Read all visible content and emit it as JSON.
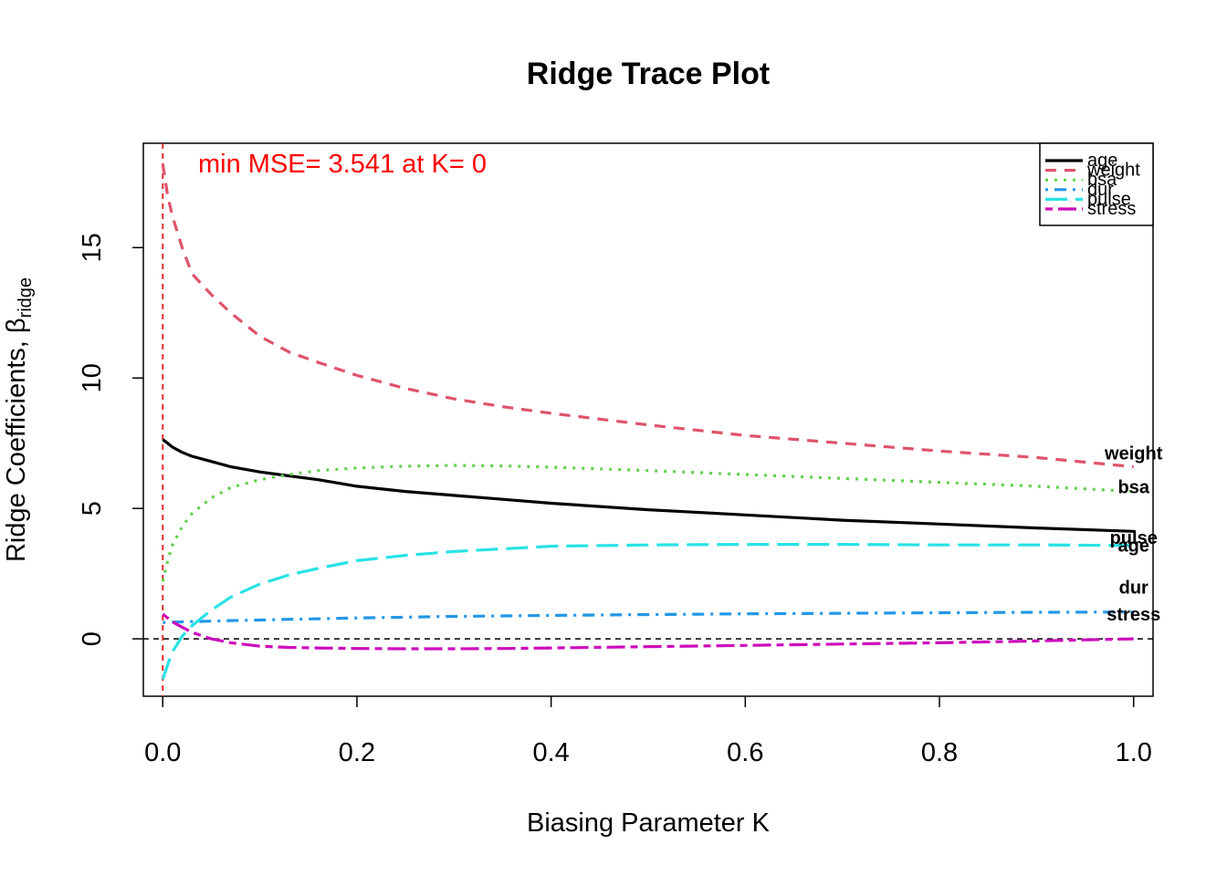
{
  "chart_data": {
    "type": "line",
    "title": "Ridge Trace Plot",
    "xlabel": "Biasing Parameter K",
    "ylabel_main": "Ridge Coefficients, ",
    "ylabel_symbol": "β",
    "ylabel_subscript": "ridge",
    "xlim": [
      -0.02,
      1.02
    ],
    "ylim": [
      -2.2,
      19.0
    ],
    "x_ticks": [
      0.0,
      0.2,
      0.4,
      0.6,
      0.8,
      1.0
    ],
    "x_tick_labels": [
      "0.0",
      "0.2",
      "0.4",
      "0.6",
      "0.8",
      "1.0"
    ],
    "y_ticks": [
      0,
      5,
      10,
      15
    ],
    "y_tick_labels": [
      "0",
      "5",
      "10",
      "15"
    ],
    "reference_vline": {
      "x": 0,
      "color": "#e41a1c",
      "style": "dashed"
    },
    "reference_hline": {
      "y": 0,
      "color": "#000000",
      "style": "dashed"
    },
    "annotation": {
      "text": "min MSE= 3.541 at K= 0",
      "color": "#ff0000"
    },
    "legend": {
      "position": "top-right"
    },
    "x": [
      0,
      0.005,
      0.01,
      0.02,
      0.03,
      0.05,
      0.07,
      0.1,
      0.13,
      0.16,
      0.2,
      0.25,
      0.3,
      0.35,
      0.4,
      0.5,
      0.6,
      0.7,
      0.8,
      0.9,
      1.0
    ],
    "series": [
      {
        "name": "age",
        "color": "#000000",
        "dash": "solid",
        "end_label": "age",
        "values": [
          7.64,
          7.5,
          7.35,
          7.15,
          7.0,
          6.8,
          6.6,
          6.4,
          6.25,
          6.1,
          5.85,
          5.65,
          5.5,
          5.35,
          5.2,
          4.95,
          4.75,
          4.55,
          4.4,
          4.25,
          4.12
        ]
      },
      {
        "name": "weight",
        "color": "#df536b",
        "dash": "dashed",
        "end_label": "weight",
        "values": [
          18.2,
          17.0,
          16.2,
          15.0,
          14.0,
          13.2,
          12.5,
          11.6,
          11.0,
          10.6,
          10.1,
          9.6,
          9.2,
          8.9,
          8.65,
          8.2,
          7.8,
          7.5,
          7.2,
          6.95,
          6.6
        ]
      },
      {
        "name": "bsa",
        "color": "#61d04f",
        "dash": "dotted",
        "end_label": "bsa",
        "values": [
          2.2,
          3.0,
          3.6,
          4.3,
          4.8,
          5.4,
          5.8,
          6.1,
          6.3,
          6.45,
          6.55,
          6.62,
          6.65,
          6.63,
          6.58,
          6.45,
          6.3,
          6.15,
          6.0,
          5.85,
          5.65
        ]
      },
      {
        "name": "dur",
        "color": "#2297e6",
        "dash": "dashdot",
        "end_label": "dur",
        "values": [
          0.63,
          0.63,
          0.64,
          0.65,
          0.66,
          0.68,
          0.7,
          0.72,
          0.75,
          0.77,
          0.8,
          0.83,
          0.86,
          0.88,
          0.9,
          0.93,
          0.96,
          0.98,
          1.0,
          1.02,
          1.03
        ]
      },
      {
        "name": "pulse",
        "color": "#28e2e5",
        "dash": "longdash",
        "end_label": "pulse",
        "values": [
          -1.55,
          -1.0,
          -0.5,
          0.1,
          0.5,
          1.1,
          1.6,
          2.1,
          2.45,
          2.7,
          3.0,
          3.2,
          3.35,
          3.45,
          3.55,
          3.6,
          3.62,
          3.62,
          3.6,
          3.6,
          3.58
        ]
      },
      {
        "name": "stress",
        "color": "#cd0bbc",
        "dash": "twodash",
        "end_label": "stress",
        "values": [
          0.95,
          0.8,
          0.65,
          0.45,
          0.25,
          0.0,
          -0.15,
          -0.28,
          -0.33,
          -0.35,
          -0.37,
          -0.38,
          -0.38,
          -0.37,
          -0.35,
          -0.3,
          -0.25,
          -0.2,
          -0.15,
          -0.08,
          0.0
        ]
      }
    ]
  }
}
